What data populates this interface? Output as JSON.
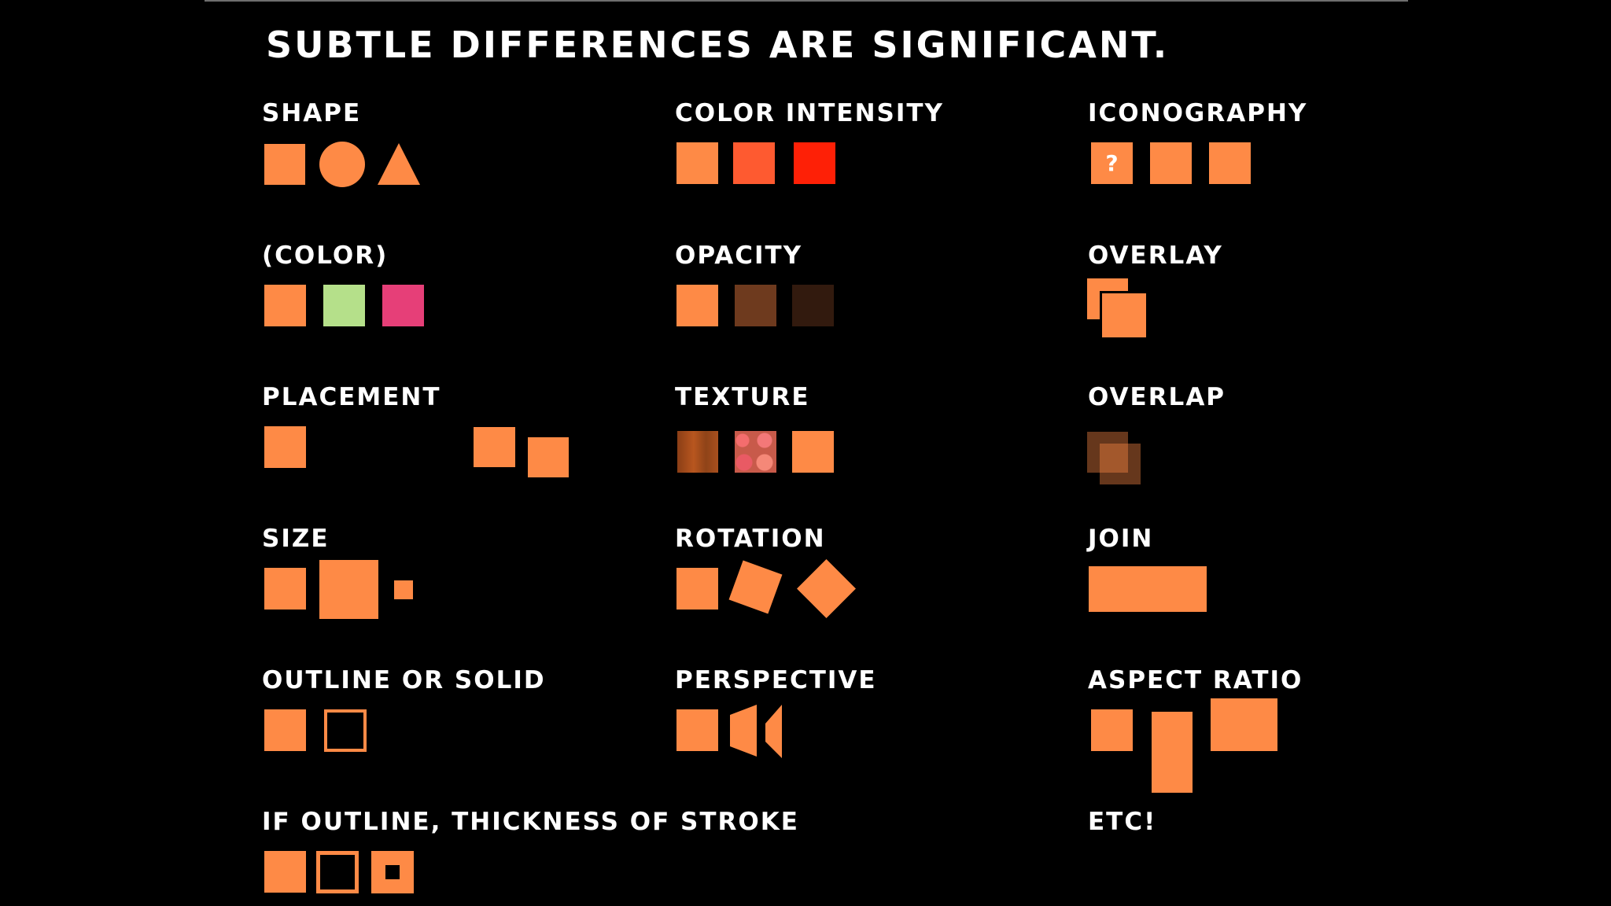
{
  "title": "SUBTLE DIFFERENCES ARE SIGNIFICANT.",
  "colors": {
    "background": "#000000",
    "accent": "#fe8a46",
    "intensity_2": "#fe5a30",
    "intensity_3": "#fe2006",
    "green": "#b5e08a",
    "pink": "#e63f78",
    "opacity_2": "#6e3a1e",
    "opacity_3": "#321a0e",
    "texture_1": "#9a4a1c"
  },
  "labels": {
    "shape": "SHAPE",
    "color_intensity": "COLOR INTENSITY",
    "iconography": "ICONOGRAPHY",
    "color": "(COLOR)",
    "opacity": "OPACITY",
    "overlay": "OVERLAY",
    "placement": "PLACEMENT",
    "texture": "TEXTURE",
    "overlap": "OVERLAP",
    "size": "SIZE",
    "rotation": "ROTATION",
    "join": "JOIN",
    "outline_or_solid": "OUTLINE OR SOLID",
    "perspective": "PERSPECTIVE",
    "aspect_ratio": "ASPECT RATIO",
    "stroke_thickness": "IF OUTLINE, THICKNESS OF STROKE",
    "etc": "ETC!"
  },
  "iconography_glyph": "?"
}
